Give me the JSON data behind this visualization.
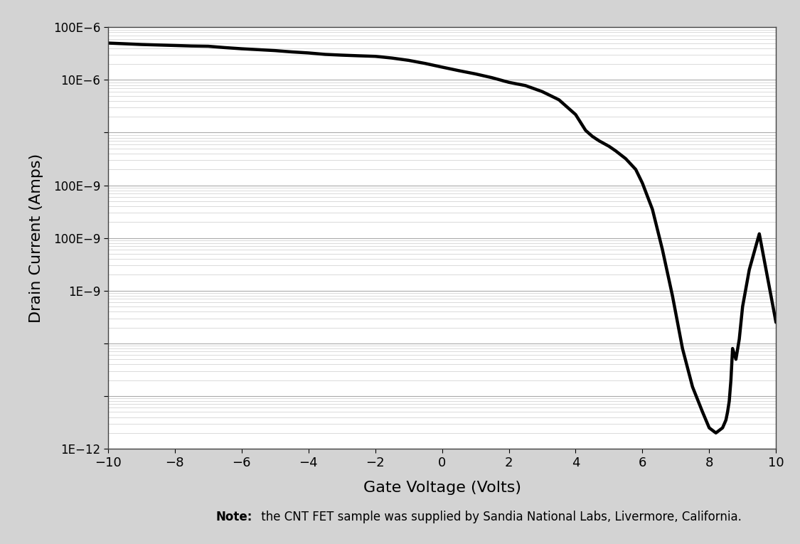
{
  "x_data": [
    -10,
    -9.5,
    -9,
    -8.5,
    -8,
    -7.5,
    -7,
    -6.5,
    -6,
    -5.5,
    -5,
    -4.5,
    -4,
    -3.5,
    -3,
    -2.5,
    -2,
    -1.5,
    -1,
    -0.5,
    0,
    0.5,
    1,
    1.5,
    2,
    2.5,
    3,
    3.5,
    4,
    4.3,
    4.5,
    4.7,
    5,
    5.2,
    5.5,
    5.8,
    6,
    6.3,
    6.6,
    6.9,
    7.2,
    7.5,
    7.8,
    8.0,
    8.2,
    8.4,
    8.5,
    8.55,
    8.6,
    8.65,
    8.7,
    8.8,
    8.9,
    9.0,
    9.2,
    9.5,
    10.0
  ],
  "y_data": [
    5e-05,
    4.85e-05,
    4.7e-05,
    4.6e-05,
    4.5e-05,
    4.4e-05,
    4.35e-05,
    4.1e-05,
    3.9e-05,
    3.75e-05,
    3.6e-05,
    3.4e-05,
    3.25e-05,
    3.05e-05,
    2.95e-05,
    2.87e-05,
    2.8e-05,
    2.6e-05,
    2.35e-05,
    2.05e-05,
    1.75e-05,
    1.5e-05,
    1.3e-05,
    1.1e-05,
    9e-06,
    7.8e-06,
    6e-06,
    4.2e-06,
    2.2e-06,
    1.1e-06,
    8.5e-07,
    7e-07,
    5.5e-07,
    4.5e-07,
    3.2e-07,
    2e-07,
    1.1e-07,
    3.5e-08,
    6e-09,
    8e-10,
    8e-11,
    1.5e-11,
    5e-12,
    2.5e-12,
    2e-12,
    2.5e-12,
    3.5e-12,
    5e-12,
    8e-12,
    2e-11,
    8e-11,
    5e-11,
    1.2e-10,
    5e-10,
    2.5e-09,
    1.2e-08,
    2.5e-10
  ],
  "xlabel": "Gate Voltage (Volts)",
  "ylabel": "Drain Current (Amps)",
  "note": "the CNT FET sample was supplied by Sandia National Labs, Livermore, California.",
  "note_bold": "Note:",
  "xlim": [
    -10,
    10
  ],
  "ylim": [
    1e-12,
    0.0001
  ],
  "xticks": [
    -10,
    -8,
    -6,
    -4,
    -2,
    0,
    2,
    4,
    6,
    8,
    10
  ],
  "custom_ytick_labels": [
    "1E−12",
    "100E−9",
    "1E−9",
    "100E−9",
    "10E−6",
    "100E−6"
  ],
  "line_color": "#000000",
  "line_width": 3.2,
  "bg_color": "#d3d3d3",
  "plot_bg_color": "#ffffff",
  "grid_major_color": "#aaaaaa",
  "grid_minor_color": "#cccccc",
  "font_family": "DejaVu Sans"
}
